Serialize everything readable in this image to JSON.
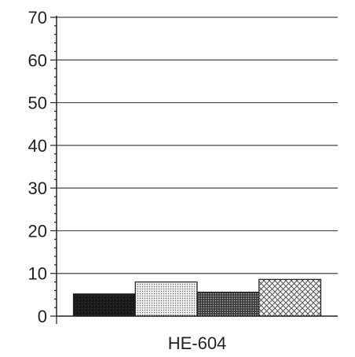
{
  "chart_data": {
    "type": "bar",
    "title": "",
    "xlabel": "",
    "ylabel": "",
    "ylim": [
      0,
      70
    ],
    "yticks": [
      0,
      10,
      20,
      30,
      40,
      50,
      60,
      70
    ],
    "grid": true,
    "categories": [
      "HE-604"
    ],
    "series": [
      {
        "values": [
          5.2
        ],
        "pattern": "dark-solid",
        "color": "#1a1a1a"
      },
      {
        "values": [
          8.0
        ],
        "pattern": "light-dots",
        "color": "#e8e8e8"
      },
      {
        "values": [
          5.6
        ],
        "pattern": "medium-dots",
        "color": "#5a5a5a"
      },
      {
        "values": [
          8.6
        ],
        "pattern": "crosshatch",
        "color": "#f0f0f0"
      }
    ]
  }
}
